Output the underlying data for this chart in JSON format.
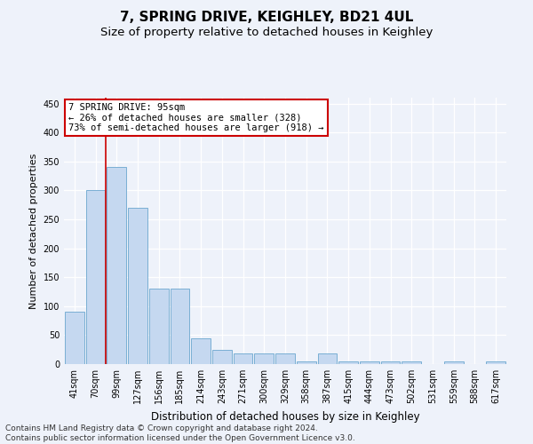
{
  "title": "7, SPRING DRIVE, KEIGHLEY, BD21 4UL",
  "subtitle": "Size of property relative to detached houses in Keighley",
  "xlabel": "Distribution of detached houses by size in Keighley",
  "ylabel": "Number of detached properties",
  "categories": [
    "41sqm",
    "70sqm",
    "99sqm",
    "127sqm",
    "156sqm",
    "185sqm",
    "214sqm",
    "243sqm",
    "271sqm",
    "300sqm",
    "329sqm",
    "358sqm",
    "387sqm",
    "415sqm",
    "444sqm",
    "473sqm",
    "502sqm",
    "531sqm",
    "559sqm",
    "588sqm",
    "617sqm"
  ],
  "values": [
    90,
    300,
    340,
    270,
    130,
    130,
    45,
    25,
    18,
    18,
    18,
    4,
    18,
    4,
    4,
    4,
    4,
    0,
    4,
    0,
    4
  ],
  "bar_color": "#c5d8f0",
  "bar_edge_color": "#7aafd4",
  "vline_color": "#cc0000",
  "vline_pos": 1.5,
  "annotation_text": "7 SPRING DRIVE: 95sqm\n← 26% of detached houses are smaller (328)\n73% of semi-detached houses are larger (918) →",
  "annotation_box_facecolor": "#ffffff",
  "annotation_box_edgecolor": "#cc0000",
  "ylim": [
    0,
    460
  ],
  "yticks": [
    0,
    50,
    100,
    150,
    200,
    250,
    300,
    350,
    400,
    450
  ],
  "footer_text": "Contains HM Land Registry data © Crown copyright and database right 2024.\nContains public sector information licensed under the Open Government Licence v3.0.",
  "bg_color": "#eef2fa",
  "grid_color": "#ffffff",
  "title_fontsize": 11,
  "subtitle_fontsize": 9.5,
  "xlabel_fontsize": 8.5,
  "ylabel_fontsize": 8,
  "tick_fontsize": 7,
  "annotation_fontsize": 7.5,
  "footer_fontsize": 6.5
}
